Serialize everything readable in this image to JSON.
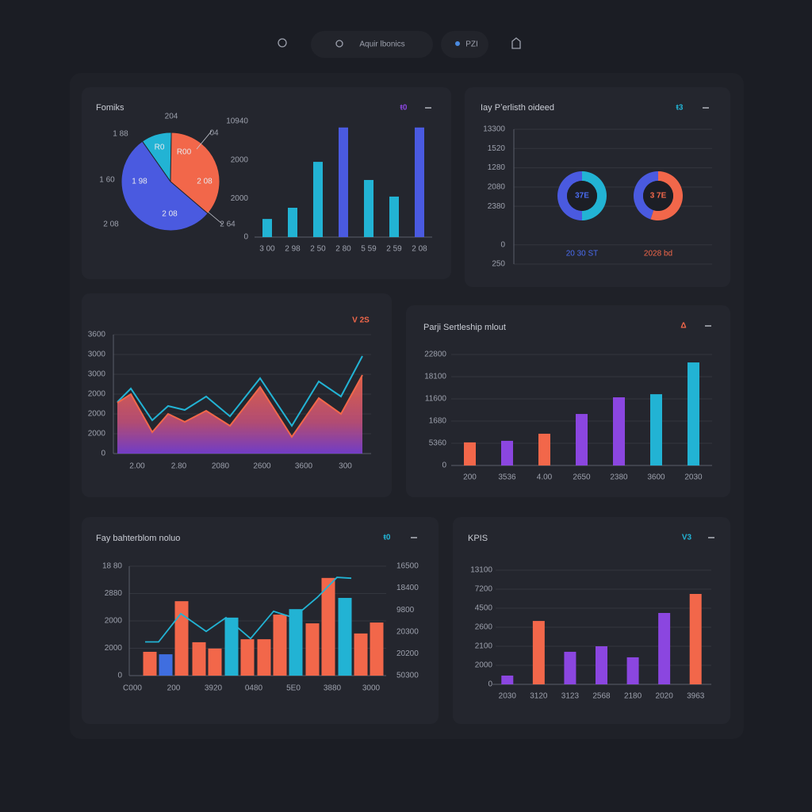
{
  "nav": {
    "items": [
      "Aquir lbonics",
      "PZI"
    ]
  },
  "chart_data": [
    {
      "type": "pie",
      "title": "Fomiks",
      "badge": "ŧ0",
      "values": [
        10,
        36,
        54
      ],
      "colors": [
        "#22b3d4",
        "#f2674a",
        "#4a5ae0"
      ],
      "annotations": [
        "204",
        "1 88",
        "1 60",
        "2 08",
        "04",
        "2 64",
        "R0",
        "R00",
        "2 08",
        "1 98",
        "2 08"
      ]
    },
    {
      "type": "bar",
      "categories": [
        "3 00",
        "2 98",
        "2 50",
        "2 80",
        "5 59",
        "2 59",
        "2 08"
      ],
      "values": [
        0.47,
        0.76,
        1.95,
        2.84,
        1.48,
        1.05,
        2.84
      ],
      "colors": [
        "#22b3d4",
        "#22b3d4",
        "#22b3d4",
        "#4a5ae0",
        "#22b3d4",
        "#22b3d4",
        "#4a5ae0"
      ],
      "ylim": [
        0,
        3
      ],
      "yticks": [
        0,
        {
          "value": 1,
          "label": "2000"
        },
        {
          "value": 2,
          "label": "2000"
        },
        {
          "value": 3,
          "label": "10940"
        }
      ],
      "grid": false
    },
    {
      "type": "donut",
      "title": "Iay Pʼerlisth oideed",
      "badge": "ŧ3",
      "series": [
        {
          "name": "20 30 ST",
          "color": "#4a6cf0",
          "center_label": "37E",
          "values": [
            50,
            50
          ],
          "colors": [
            "#22b3d4",
            "#4a5ae0"
          ]
        },
        {
          "name": "2028 bd",
          "color": "#f2674a",
          "center_label": "3 7E",
          "values": [
            55,
            45
          ],
          "colors": [
            "#f2674a",
            "#4a5ae0"
          ]
        }
      ],
      "ylim": [
        -1,
        6
      ],
      "yticks": [
        {
          "value": -1,
          "label": "250"
        },
        0,
        {
          "value": 2,
          "label": "2380"
        },
        {
          "value": 3,
          "label": "2080"
        },
        {
          "value": 4,
          "label": "1280"
        },
        {
          "value": 5,
          "label": "1520"
        },
        {
          "value": 6,
          "label": "13300"
        }
      ],
      "grid": true
    },
    {
      "type": "area",
      "badge": "V 2S",
      "series": [
        {
          "color": "#22b3d4",
          "x": [
            0.2,
            0.88,
            1.96,
            2.76,
            3.6,
            4.68,
            5.88,
            7.4,
            9.0,
            10.36,
            11.48,
            12.56
          ],
          "values": [
            2.6,
            3.28,
            1.68,
            2.4,
            2.2,
            2.88,
            1.88,
            3.8,
            1.4,
            3.64,
            2.88,
            4.92
          ]
        },
        {
          "color": "#f2674a",
          "x": [
            0.2,
            0.88,
            1.96,
            2.76,
            3.6,
            4.68,
            5.88,
            7.4,
            9.0,
            10.36,
            11.48,
            12.56
          ],
          "values": [
            2.56,
            3.0,
            1.08,
            2.0,
            1.6,
            2.16,
            1.4,
            3.36,
            0.84,
            2.8,
            2.0,
            3.96
          ]
        }
      ],
      "xlim": [
        0,
        13
      ],
      "xticks": [
        {
          "value": 1.2,
          "label": "2.00"
        },
        {
          "value": 3.3,
          "label": "2.80"
        },
        {
          "value": 5.4,
          "label": "2080"
        },
        {
          "value": 7.5,
          "label": "2600"
        },
        {
          "value": 9.6,
          "label": "3600"
        },
        {
          "value": 11.7,
          "label": "300"
        }
      ],
      "ylim": [
        0,
        6
      ],
      "yticks": [
        0,
        {
          "value": 1,
          "label": "2000"
        },
        {
          "value": 2,
          "label": "2000"
        },
        {
          "value": 3,
          "label": "2000"
        },
        {
          "value": 4,
          "label": "3000"
        },
        {
          "value": 5,
          "label": "3000"
        },
        {
          "value": 6,
          "label": "3600"
        }
      ],
      "grid": true
    },
    {
      "type": "bar",
      "title": "Parji Sertleship mlout",
      "badge": "Δ",
      "categories": [
        "200",
        "3536",
        "4.00",
        "2650",
        "2380",
        "3600",
        "2030"
      ],
      "values": [
        1.04,
        1.11,
        1.43,
        2.32,
        3.07,
        3.21,
        4.64
      ],
      "colors": [
        "#f2674a",
        "#8b46e0",
        "#f2674a",
        "#8b46e0",
        "#8b46e0",
        "#22b3d4",
        "#22b3d4"
      ],
      "ylim": [
        0,
        5
      ],
      "yticks": [
        0,
        {
          "value": 1,
          "label": "5360"
        },
        {
          "value": 2,
          "label": "1680"
        },
        {
          "value": 3,
          "label": "11600"
        },
        {
          "value": 4,
          "label": "18100"
        },
        {
          "value": 5,
          "label": "22800"
        }
      ],
      "grid": true
    },
    {
      "type": "combo",
      "title": "Fay bahterblom noluo",
      "badge": "ŧ0",
      "series": [
        {
          "type": "bar",
          "x": [
            1.3,
            2.3,
            3.3,
            4.4,
            5.4,
            6.45,
            7.45,
            8.5,
            9.5,
            10.5,
            11.55,
            12.55,
            13.6,
            14.6,
            15.6
          ],
          "values": [
            0.87,
            0.78,
            2.72,
            1.22,
            0.99,
            2.12,
            1.33,
            1.33,
            2.23,
            2.43,
            1.91,
            3.57,
            2.84,
            1.54,
            1.94
          ],
          "colors": [
            "#f2674a",
            "#3f6ee0",
            "#f2674a",
            "#f2674a",
            "#f2674a",
            "#22b3d4",
            "#f2674a",
            "#f2674a",
            "#f2674a",
            "#22b3d4",
            "#f2674a",
            "#f2674a",
            "#22b3d4",
            "#f2674a",
            "#f2674a"
          ]
        },
        {
          "type": "line",
          "axis": "y2",
          "color": "#22b3d4",
          "x": [
            1.0,
            1.85,
            3.25,
            4.85,
            6.1,
            7.65,
            9.1,
            10.35,
            11.85,
            13.1,
            14.0
          ],
          "values": [
            1.54,
            1.54,
            2.83,
            2.02,
            2.65,
            1.69,
            2.94,
            2.65,
            3.57,
            4.49,
            4.45
          ]
        }
      ],
      "xlim": [
        0,
        16.2
      ],
      "xticks": [
        {
          "value": 0.2,
          "label": "C000"
        },
        {
          "value": 2.8,
          "label": "200"
        },
        {
          "value": 5.3,
          "label": "3920"
        },
        {
          "value": 7.85,
          "label": "0480"
        },
        {
          "value": 10.35,
          "label": "5E0"
        },
        {
          "value": 12.8,
          "label": "3880"
        },
        {
          "value": 15.25,
          "label": "3000"
        }
      ],
      "ylim": [
        0,
        4
      ],
      "yticks": [
        0,
        {
          "value": 1,
          "label": "2000"
        },
        {
          "value": 2,
          "label": "2000"
        },
        {
          "value": 3,
          "label": "2880"
        },
        {
          "value": 4,
          "label": "18 80"
        }
      ],
      "y2lim": [
        0,
        5
      ],
      "y2ticks": [
        {
          "value": 0,
          "label": "50300"
        },
        {
          "value": 1,
          "label": "20200"
        },
        {
          "value": 2,
          "label": "20300"
        },
        {
          "value": 3,
          "label": "9800"
        },
        {
          "value": 4,
          "label": "18400"
        },
        {
          "value": 5,
          "label": "16500"
        }
      ],
      "grid": true
    },
    {
      "type": "bar",
      "title": "KPIS",
      "badge": "V3",
      "categories": [
        "2030",
        "3120",
        "3123",
        "2568",
        "2180",
        "2020",
        "3963"
      ],
      "values": [
        0.46,
        3.33,
        1.71,
        2.0,
        1.42,
        3.75,
        4.75
      ],
      "colors": [
        "#8b46e0",
        "#f2674a",
        "#8b46e0",
        "#8b46e0",
        "#8b46e0",
        "#8b46e0",
        "#f2674a"
      ],
      "ylim": [
        0,
        6
      ],
      "yticks": [
        0,
        {
          "value": 1,
          "label": "2000"
        },
        {
          "value": 2,
          "label": "2100"
        },
        {
          "value": 3,
          "label": "2600"
        },
        {
          "value": 4,
          "label": "4500"
        },
        {
          "value": 5,
          "label": "7200"
        },
        {
          "value": 6,
          "label": "13100"
        }
      ],
      "grid": true
    }
  ]
}
